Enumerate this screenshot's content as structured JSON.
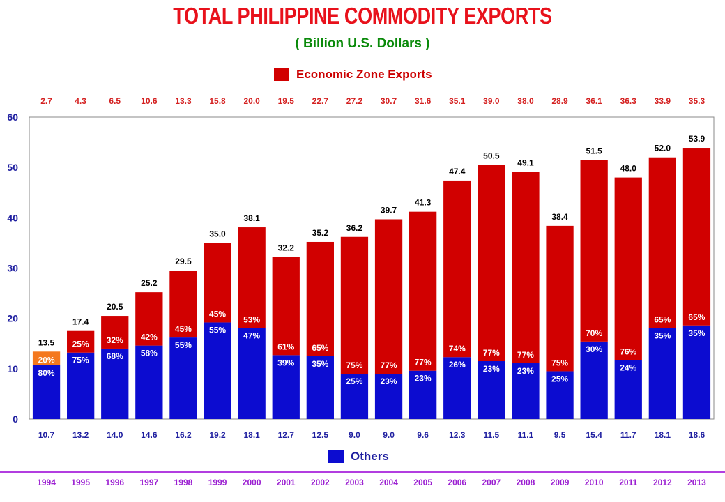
{
  "chart_data": {
    "type": "bar",
    "stacked": true,
    "title": "TOTAL PHILIPPINE COMMODITY EXPORTS",
    "subtitle": "( Billion U.S. Dollars )",
    "categories": [
      "1994",
      "1995",
      "1996",
      "1997",
      "1998",
      "1999",
      "2000",
      "2001",
      "2002",
      "2003",
      "2004",
      "2005",
      "2006",
      "2007",
      "2008",
      "2009",
      "2010",
      "2011",
      "2012",
      "2013"
    ],
    "ylim": [
      0,
      60
    ],
    "yticks": [
      "0",
      "10",
      "20",
      "30",
      "40",
      "50",
      "60"
    ],
    "grid": false,
    "series": [
      {
        "name": "Others",
        "color": "#0c0cd0",
        "values": [
          10.7,
          13.2,
          14.0,
          14.6,
          16.2,
          19.2,
          18.1,
          12.7,
          12.5,
          9.0,
          9.0,
          9.6,
          12.3,
          11.5,
          11.1,
          9.5,
          15.4,
          11.7,
          18.1,
          18.6
        ],
        "value_labels": [
          "10.7",
          "13.2",
          "14.0",
          "14.6",
          "16.2",
          "19.2",
          "18.1",
          "12.7",
          "12.5",
          "9.0",
          "9.0",
          "9.6",
          "12.3",
          "11.5",
          "11.1",
          "9.5",
          "15.4",
          "11.7",
          "18.1",
          "18.6"
        ],
        "percent_labels": [
          "80%",
          "75%",
          "68%",
          "58%",
          "55%",
          "55%",
          "47%",
          "39%",
          "35%",
          "25%",
          "23%",
          "23%",
          "26%",
          "23%",
          "23%",
          "25%",
          "30%",
          "24%",
          "35%",
          "35%"
        ]
      },
      {
        "name": "Economic Zone Exports",
        "color": "#d10000",
        "first_bar_color": "#f4781e",
        "values": [
          2.7,
          4.3,
          6.5,
          10.6,
          13.3,
          15.8,
          20.0,
          19.5,
          22.7,
          27.2,
          30.7,
          31.6,
          35.1,
          39.0,
          38.0,
          28.9,
          36.1,
          36.3,
          33.9,
          35.3
        ],
        "value_labels": [
          "2.7",
          "4.3",
          "6.5",
          "10.6",
          "13.3",
          "15.8",
          "20.0",
          "19.5",
          "22.7",
          "27.2",
          "30.7",
          "31.6",
          "35.1",
          "39.0",
          "38.0",
          "28.9",
          "36.1",
          "36.3",
          "33.9",
          "35.3"
        ],
        "percent_labels": [
          "20%",
          "25%",
          "32%",
          "42%",
          "45%",
          "45%",
          "53%",
          "61%",
          "65%",
          "75%",
          "77%",
          "77%",
          "74%",
          "77%",
          "77%",
          "75%",
          "70%",
          "76%",
          "65%",
          "65%"
        ]
      }
    ],
    "totals": [
      13.5,
      17.4,
      20.5,
      25.2,
      29.5,
      35.0,
      38.1,
      32.2,
      35.2,
      36.2,
      39.7,
      41.3,
      47.4,
      50.5,
      49.1,
      38.4,
      51.5,
      48.0,
      52.0,
      53.9
    ],
    "total_labels": [
      "13.5",
      "17.4",
      "20.5",
      "25.2",
      "29.5",
      "35.0",
      "38.1",
      "32.2",
      "35.2",
      "36.2",
      "39.7",
      "41.3",
      "47.4",
      "50.5",
      "49.1",
      "38.4",
      "51.5",
      "48.0",
      "52.0",
      "53.9"
    ],
    "legend": [
      {
        "label": "Economic Zone Exports",
        "color": "#d10000",
        "placement": "top-center"
      },
      {
        "label": "Others",
        "color": "#0c0cd0",
        "placement": "bottom-center"
      }
    ],
    "colors": {
      "title": "#e8111b",
      "subtitle": "#0a8a0a",
      "ez_text": "#d42020",
      "others_text": "#1f1fa0",
      "year_text": "#9b1fd1",
      "year_line": "#b23de0",
      "axis_text": "#1f1fa0"
    }
  }
}
